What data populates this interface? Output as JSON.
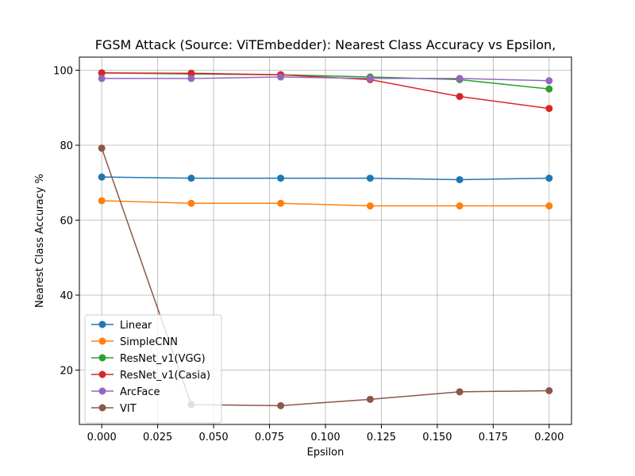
{
  "chart_data": {
    "type": "line",
    "title": "FGSM Attack (Source: ViTEmbedder): Nearest Class Accuracy vs Epsilon,",
    "xlabel": "Epsilon",
    "ylabel": "Nearest Class Accuracy %",
    "xlim": [
      -0.01,
      0.21
    ],
    "ylim": [
      5.5,
      103.5
    ],
    "xticks": [
      0.0,
      0.025,
      0.05,
      0.075,
      0.1,
      0.125,
      0.15,
      0.175,
      0.2
    ],
    "xtick_labels": [
      "0.000",
      "0.025",
      "0.050",
      "0.075",
      "0.100",
      "0.125",
      "0.150",
      "0.175",
      "0.200"
    ],
    "yticks": [
      20,
      40,
      60,
      80,
      100
    ],
    "ytick_labels": [
      "20",
      "40",
      "60",
      "80",
      "100"
    ],
    "grid": true,
    "legend_position": "lower-left",
    "x": [
      0.0,
      0.04,
      0.08,
      0.12,
      0.16,
      0.2
    ],
    "series": [
      {
        "name": "Linear",
        "color": "#1f77b4",
        "values": [
          71.5,
          71.2,
          71.2,
          71.2,
          70.8,
          71.2
        ]
      },
      {
        "name": "SimpleCNN",
        "color": "#ff7f0e",
        "values": [
          65.2,
          64.5,
          64.5,
          63.8,
          63.8,
          63.8
        ]
      },
      {
        "name": "ResNet_v1(VGG)",
        "color": "#2ca02c",
        "values": [
          99.3,
          99.0,
          98.8,
          98.2,
          97.5,
          95.0
        ]
      },
      {
        "name": "ResNet_v1(Casia)",
        "color": "#d62728",
        "values": [
          99.3,
          99.2,
          98.8,
          97.5,
          93.0,
          89.8
        ]
      },
      {
        "name": "ArcFace",
        "color": "#9467bd",
        "values": [
          97.8,
          97.8,
          98.2,
          97.8,
          97.8,
          97.2
        ]
      },
      {
        "name": "VIT",
        "color": "#8c564b",
        "values": [
          79.2,
          10.8,
          10.5,
          12.2,
          14.2,
          14.5
        ]
      }
    ]
  }
}
